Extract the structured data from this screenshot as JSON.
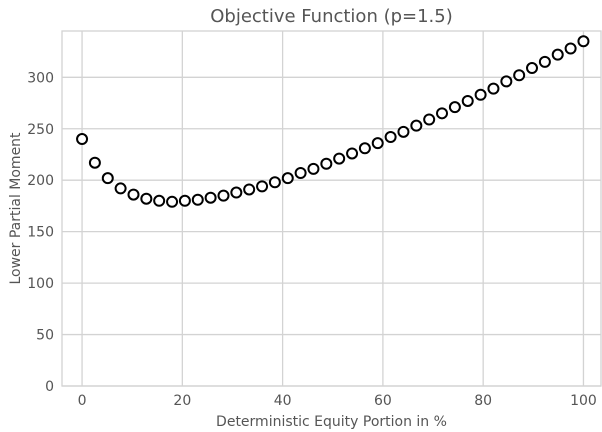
{
  "chart_data": {
    "type": "scatter",
    "title": "Objective Function (p=1.5)",
    "xlabel": "Deterministic Equity Portion in %",
    "ylabel": "Lower Partial Moment",
    "xlim": [
      -4,
      103.5
    ],
    "ylim": [
      0,
      345
    ],
    "xticks": [
      0,
      20,
      40,
      60,
      80,
      100
    ],
    "yticks": [
      0,
      50,
      100,
      150,
      200,
      250,
      300
    ],
    "grid": true,
    "marker": "open-circle",
    "x": [
      0,
      2.56,
      5.13,
      7.69,
      10.26,
      12.82,
      15.38,
      17.95,
      20.51,
      23.08,
      25.64,
      28.21,
      30.77,
      33.33,
      35.9,
      38.46,
      41.03,
      43.59,
      46.15,
      48.72,
      51.28,
      53.85,
      56.41,
      58.97,
      61.54,
      64.1,
      66.67,
      69.23,
      71.79,
      74.36,
      76.92,
      79.49,
      82.05,
      84.62,
      87.18,
      89.74,
      92.31,
      94.87,
      97.44,
      100
    ],
    "y": [
      240,
      217,
      202,
      192,
      186,
      182,
      180,
      179,
      180,
      181,
      183,
      185,
      188,
      191,
      194,
      198,
      202,
      207,
      211,
      216,
      221,
      226,
      231,
      236,
      242,
      247,
      253,
      259,
      265,
      271,
      277,
      283,
      289,
      296,
      302,
      309,
      315,
      322,
      328,
      335
    ]
  }
}
